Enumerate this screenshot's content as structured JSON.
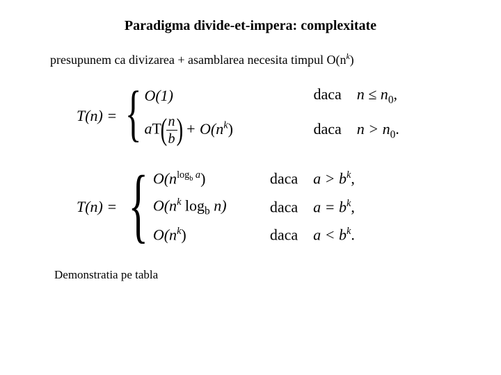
{
  "title": "Paradigma divide-et-impera: complexitate",
  "bullet": {
    "mark": "",
    "text_before": "presupunem ca divizarea + asamblarea necesita timpul O(n",
    "sup": "k",
    "text_after": ")"
  },
  "eq1": {
    "lhs": "T(n) = ",
    "case1_expr": "O(1)",
    "case1_cond_word": "daca",
    "case1_cond_rel": "n ≤ n",
    "case1_cond_sub": "0",
    "case1_cond_tail": ",",
    "case2_a": "a",
    "case2_T": "T",
    "case2_num": "n",
    "case2_den": "b",
    "case2_plus": " + O(n",
    "case2_sup": "k",
    "case2_close": ")",
    "case2_cond_word": "daca",
    "case2_cond_rel": "n > n",
    "case2_cond_sub": "0",
    "case2_cond_tail": "."
  },
  "eq2": {
    "lhs": "T(n) = ",
    "c1_expr_pre": "O(n",
    "c1_sup_pre": "log",
    "c1_sup_sub": "b",
    "c1_sup_post": " a",
    "c1_expr_post": ")",
    "c1_word": "daca",
    "c1_rel": "a > b",
    "c1_sup": "k",
    "c1_tail": ",",
    "c2_expr_pre": "O(n",
    "c2_sup": "k",
    "c2_mid": " log",
    "c2_sub": "b",
    "c2_post": " n)",
    "c2_word": "daca",
    "c2_rel": "a = b",
    "c2_relsup": "k",
    "c2_tail": ",",
    "c3_expr_pre": "O(n",
    "c3_sup": "k",
    "c3_expr_post": ")",
    "c3_word": "daca",
    "c3_rel": "a < b",
    "c3_relsup": "k",
    "c3_tail": "."
  },
  "footnote": "Demonstratia pe tabla"
}
